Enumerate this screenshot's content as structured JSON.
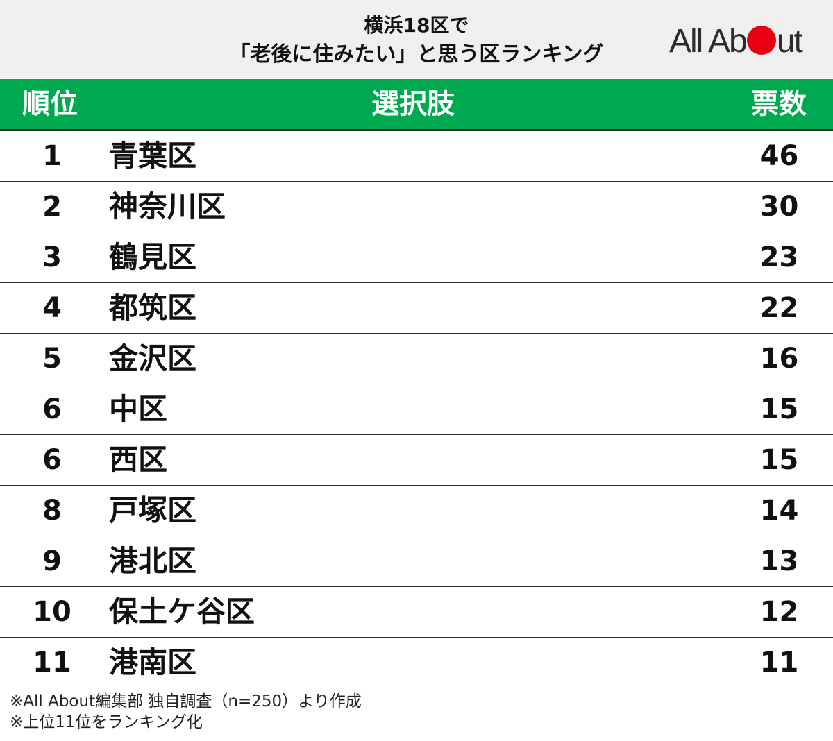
{
  "header": {
    "title_line1": "横浜18区で",
    "title_line2": "「老後に住みたい」と思う区ランキング",
    "logo_text_pre": "All Ab",
    "logo_text_post": "ut",
    "logo_accent_color": "#e60012"
  },
  "table": {
    "columns": [
      "順位",
      "選択肢",
      "票数"
    ],
    "header_color": "#00a950"
  },
  "chart_data": {
    "type": "table",
    "title": "横浜18区で「老後に住みたい」と思う区ランキング",
    "columns": [
      "順位",
      "選択肢",
      "票数"
    ],
    "rows": [
      {
        "rank": "1",
        "name": "青葉区",
        "votes": "46"
      },
      {
        "rank": "2",
        "name": "神奈川区",
        "votes": "30"
      },
      {
        "rank": "3",
        "name": "鶴見区",
        "votes": "23"
      },
      {
        "rank": "4",
        "name": "都筑区",
        "votes": "22"
      },
      {
        "rank": "5",
        "name": "金沢区",
        "votes": "16"
      },
      {
        "rank": "6",
        "name": "中区",
        "votes": "15"
      },
      {
        "rank": "6",
        "name": "西区",
        "votes": "15"
      },
      {
        "rank": "8",
        "name": "戸塚区",
        "votes": "14"
      },
      {
        "rank": "9",
        "name": "港北区",
        "votes": "13"
      },
      {
        "rank": "10",
        "name": "保土ケ谷区",
        "votes": "12"
      },
      {
        "rank": "11",
        "name": "港南区",
        "votes": "11"
      }
    ]
  },
  "notes": [
    "※All About編集部 独自調査（n=250）より作成",
    "※上位11位をランキング化"
  ]
}
